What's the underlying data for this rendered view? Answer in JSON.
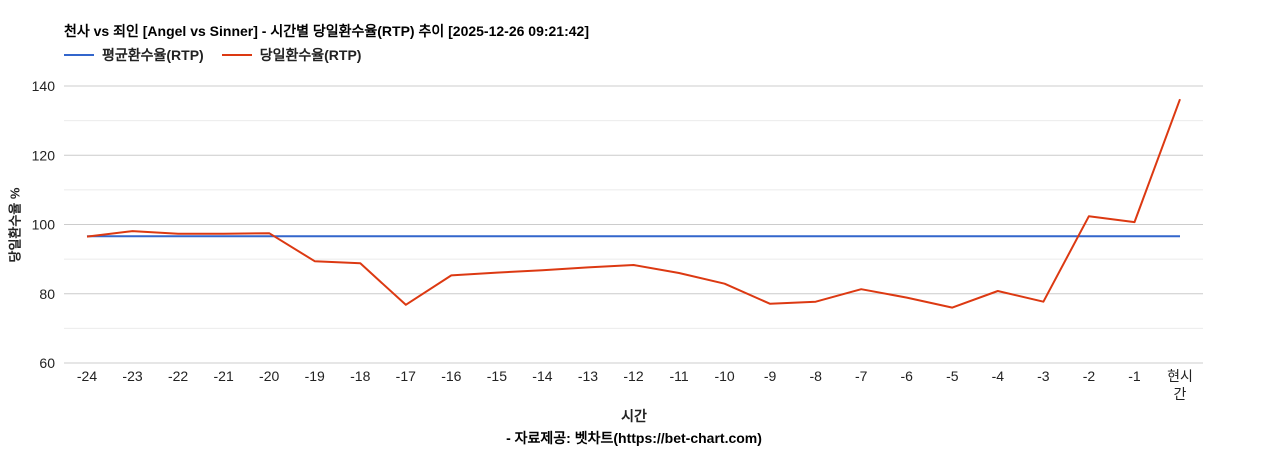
{
  "header": {
    "title": "천사 vs 죄인 [Angel vs Sinner] - 시간별 당일환수율(RTP) 추이 [2025-12-26 09:21:42]"
  },
  "legend": [
    {
      "label": "평균환수율(RTP)",
      "color": "#3366cc"
    },
    {
      "label": "당일환수율(RTP)",
      "color": "#dc3912"
    }
  ],
  "axes": {
    "x_title": "시간",
    "y_title": "당일환수율 %"
  },
  "footer": {
    "source": "- 자료제공: 벳차트(https://bet-chart.com)"
  },
  "chart_data": {
    "type": "line",
    "title": "천사 vs 죄인 [Angel vs Sinner] - 시간별 당일환수율(RTP) 추이 [2025-12-26 09:21:42]",
    "xlabel": "시간",
    "ylabel": "당일환수율 %",
    "categories": [
      "-24",
      "-23",
      "-22",
      "-21",
      "-20",
      "-19",
      "-18",
      "-17",
      "-16",
      "-15",
      "-14",
      "-13",
      "-12",
      "-11",
      "-10",
      "-9",
      "-8",
      "-7",
      "-6",
      "-5",
      "-4",
      "-3",
      "-2",
      "-1",
      "현시간"
    ],
    "series": [
      {
        "name": "평균환수율(RTP)",
        "color": "#3366cc",
        "values": [
          96.6,
          96.6,
          96.6,
          96.6,
          96.6,
          96.6,
          96.6,
          96.6,
          96.6,
          96.6,
          96.6,
          96.6,
          96.6,
          96.6,
          96.6,
          96.6,
          96.6,
          96.6,
          96.6,
          96.6,
          96.6,
          96.6,
          96.6,
          96.6,
          96.6
        ]
      },
      {
        "name": "당일환수율(RTP)",
        "color": "#dc3912",
        "values": [
          96.5,
          98.1,
          97.3,
          97.3,
          97.5,
          89.4,
          88.8,
          76.8,
          85.3,
          86.1,
          86.8,
          87.6,
          88.3,
          86.0,
          82.9,
          77.1,
          77.7,
          81.3,
          78.9,
          76.0,
          80.8,
          77.7,
          102.4,
          100.7,
          136.2
        ]
      }
    ],
    "y_ticks": [
      60,
      80,
      100,
      120,
      140
    ],
    "y_minor_ticks": [
      70,
      90,
      110,
      130
    ],
    "ylim": [
      60,
      140
    ],
    "grid": true,
    "legend_position": "top"
  }
}
